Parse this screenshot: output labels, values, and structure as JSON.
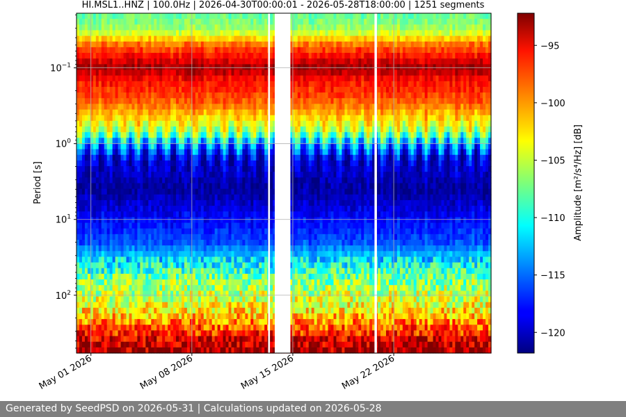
{
  "chart_data": {
    "type": "heatmap",
    "title": "HI.MSL1..HNZ | 100.0Hz | 2026-04-30T00:00:01 - 2026-05-28T18:00:00 | 1251 segments",
    "ylabel": "Period [s]",
    "y_scale": "log",
    "y_inverted": true,
    "y_ticks": [
      {
        "value": 0.1,
        "base": "10",
        "exp": "−1"
      },
      {
        "value": 1,
        "base": "10",
        "exp": "0"
      },
      {
        "value": 10,
        "base": "10",
        "exp": "1"
      },
      {
        "value": 100,
        "base": "10",
        "exp": "2"
      }
    ],
    "x_ticks": [
      {
        "date": "2026-05-01",
        "label": "May 01 2026"
      },
      {
        "date": "2026-05-08",
        "label": "May 08 2026"
      },
      {
        "date": "2026-05-15",
        "label": "May 15 2026"
      },
      {
        "date": "2026-05-22",
        "label": "May 22 2026"
      }
    ],
    "x_range": [
      "2026-04-30T00:00:01",
      "2026-05-28T18:00:00"
    ],
    "gaps": [
      {
        "start": "2026-05-13T07:00",
        "end": "2026-05-13T10:00"
      },
      {
        "start": "2026-05-13T18:00",
        "end": "2026-05-14T20:00"
      },
      {
        "start": "2026-05-20T16:00",
        "end": "2026-05-20T20:00"
      }
    ],
    "grid": true,
    "colorbar": {
      "label": "Amplitude [m²/s⁴/Hz] [dB]",
      "range": [
        -121.8,
        -92.2
      ],
      "ticks": [
        -95,
        -100,
        -105,
        -110,
        -115,
        -120
      ],
      "tick_labels": [
        "−95",
        "−100",
        "−105",
        "−110",
        "−115",
        "−120"
      ],
      "colormap": "jet"
    }
  },
  "footer": {
    "text": "Generated by SeedPSD on 2026-05-31 | Calculations updated on 2026-05-28"
  }
}
